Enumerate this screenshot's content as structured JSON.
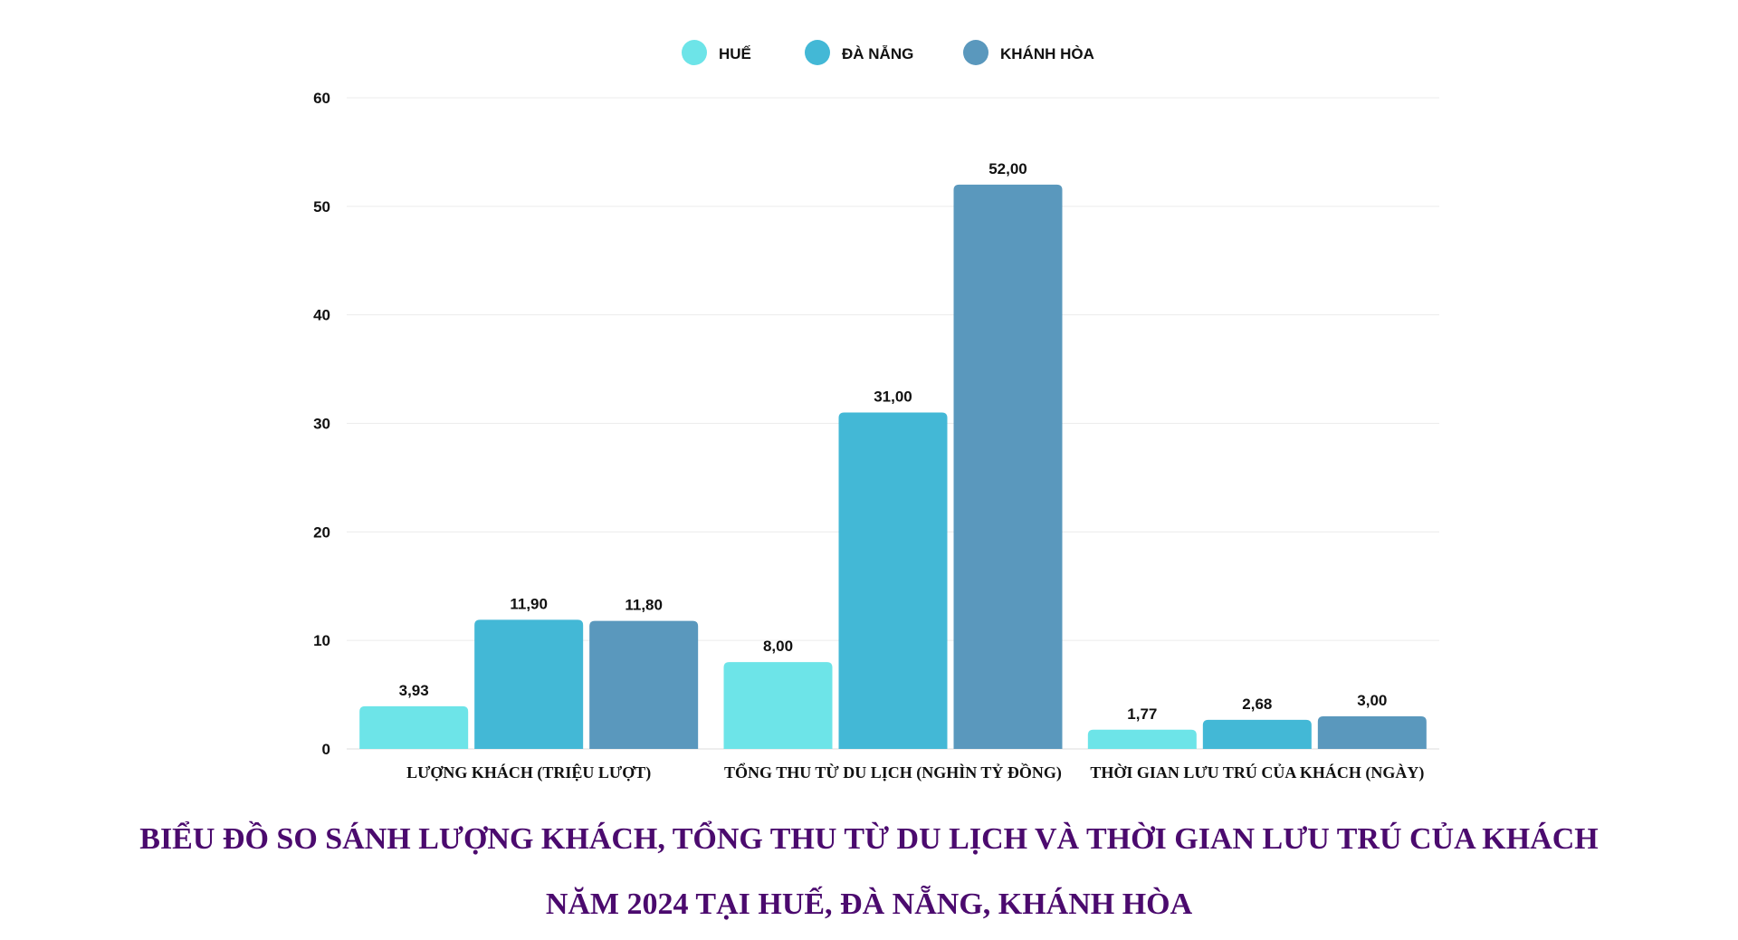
{
  "chart_data": {
    "type": "bar",
    "title_lines": [
      "BIỂU ĐỒ SO SÁNH LƯỢNG KHÁCH, TỔNG THU TỪ DU LỊCH VÀ THỜI GIAN LƯU TRÚ CỦA KHÁCH",
      "NĂM 2024 TẠI HUẾ, ĐÀ NẴNG, KHÁNH HÒA"
    ],
    "categories": [
      "LƯỢNG KHÁCH (TRIỆU LƯỢT)",
      "TỔNG THU TỪ DU LỊCH (NGHÌN TỶ ĐỒNG)",
      "THỜI GIAN LƯU TRÚ CỦA KHÁCH (NGÀY)"
    ],
    "series": [
      {
        "name": "HUẾ",
        "color": "#6de4e8",
        "values": [
          3.93,
          8.0,
          1.77
        ],
        "labels": [
          "3,93",
          "8,00",
          "1,77"
        ]
      },
      {
        "name": "ĐÀ NẴNG",
        "color": "#43b8d6",
        "values": [
          11.9,
          31.0,
          2.68
        ],
        "labels": [
          "11,90",
          "31,00",
          "2,68"
        ]
      },
      {
        "name": "KHÁNH HÒA",
        "color": "#5a98bd",
        "values": [
          11.8,
          52.0,
          3.0
        ],
        "labels": [
          "11,80",
          "52,00",
          "3,00"
        ]
      }
    ],
    "ylim": [
      0,
      60
    ],
    "yticks": [
      0,
      10,
      20,
      30,
      40,
      50,
      60
    ],
    "grid": true,
    "legend_position": "top-center"
  }
}
